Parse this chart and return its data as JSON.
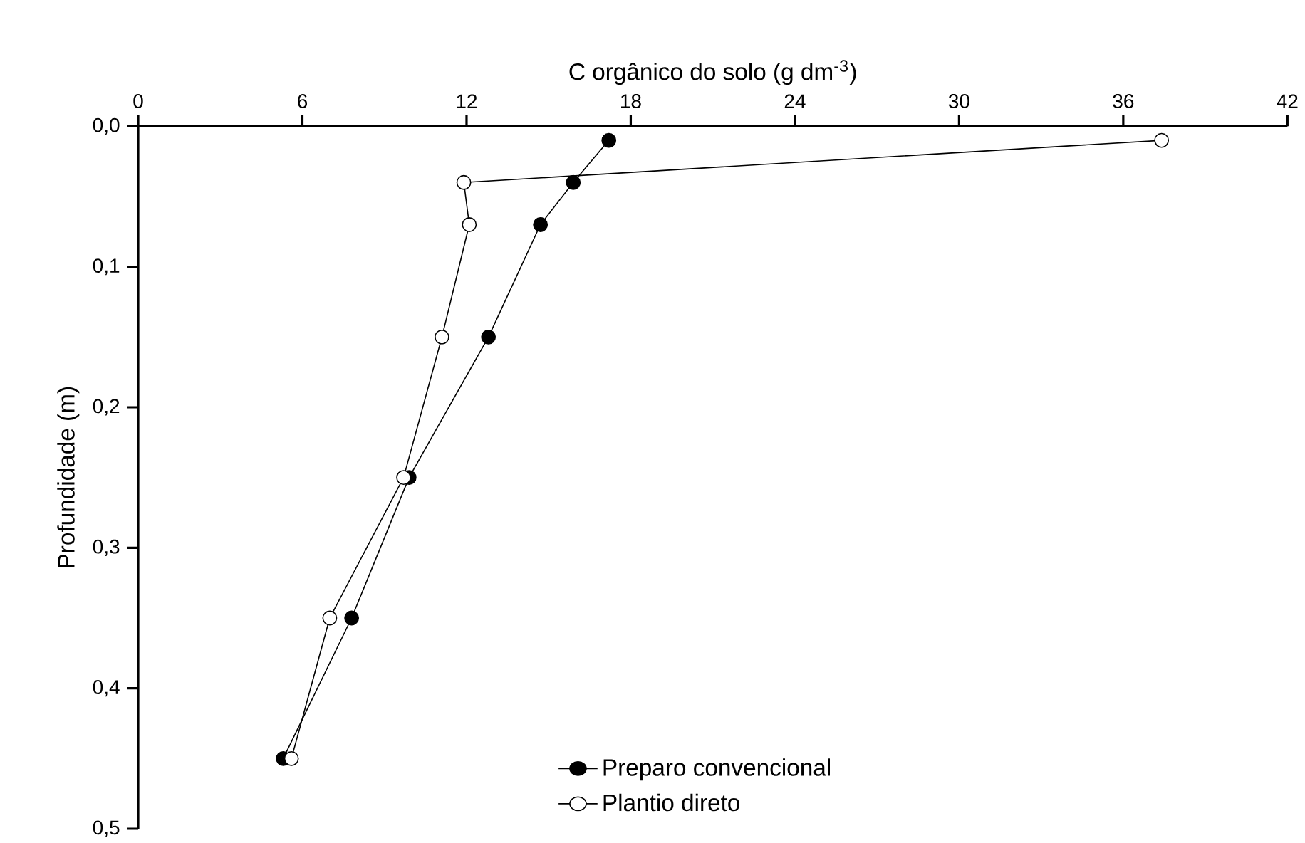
{
  "chart_data": {
    "type": "line",
    "xlabel": "C orgânico do solo (g dm$^{-3}$)",
    "ylabel": "Profundidade (m)",
    "xlim": [
      0,
      42
    ],
    "xticks": [
      0,
      6,
      12,
      18,
      24,
      30,
      36,
      42
    ],
    "ylim": [
      0.5,
      0
    ],
    "yticks": [
      {
        "value": 0,
        "label": "0,0"
      },
      {
        "value": 0.1,
        "label": "0,1"
      },
      {
        "value": 0.2,
        "label": "0,2"
      },
      {
        "value": 0.3,
        "label": "0,3"
      },
      {
        "value": 0.4,
        "label": "0,4"
      },
      {
        "value": 0.5,
        "label": "0,5"
      }
    ],
    "marker": "circle",
    "line_style": "solid",
    "grid": false,
    "legend": "bottom",
    "series": [
      {
        "name": "Preparo convencional",
        "color": "#000000",
        "x": [
          17.2,
          15.9,
          14.7,
          12.8,
          9.9,
          7.8,
          5.3
        ],
        "values": [
          0.01,
          0.04,
          0.07,
          0.15,
          0.25,
          0.35,
          0.45
        ]
      },
      {
        "name": "Plantio direto",
        "color": "#ffffff",
        "x": [
          37.4,
          11.9,
          12.1,
          11.1,
          9.7,
          7.0,
          5.6
        ],
        "values": [
          0.01,
          0.04,
          0.07,
          0.15,
          0.25,
          0.35,
          0.45
        ]
      }
    ]
  }
}
